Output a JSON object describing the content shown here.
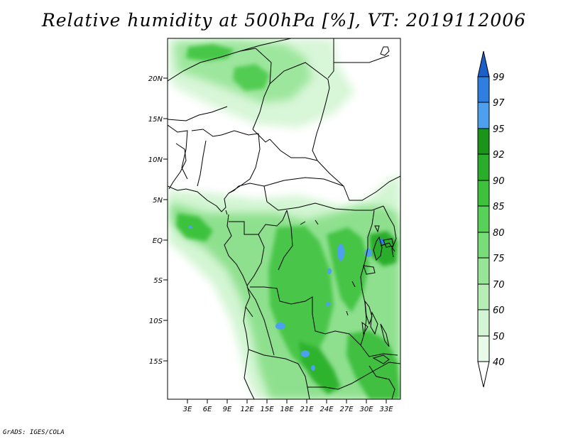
{
  "title": "Relative humidity at 500hPa [%], VT: 2019112006",
  "credit": "GrADS: IGES/COLA",
  "map": {
    "lat_ticks": [
      "20N",
      "15N",
      "10N",
      "5N",
      "EQ",
      "5S",
      "10S",
      "15S"
    ],
    "lon_ticks": [
      "3E",
      "6E",
      "9E",
      "12E",
      "15E",
      "18E",
      "21E",
      "24E",
      "27E",
      "30E",
      "33E"
    ]
  },
  "colorbar": {
    "levels": [
      "40",
      "50",
      "60",
      "70",
      "75",
      "80",
      "85",
      "90",
      "92",
      "95",
      "97",
      "99"
    ],
    "colors": {
      "below_40": "#ffffff",
      "40_50": "#e8fae8",
      "50_60": "#d3f5d3",
      "60_70": "#b6eeb6",
      "70_75": "#98e598",
      "75_80": "#78dc78",
      "80_85": "#58d158",
      "85_90": "#3ec23e",
      "90_92": "#2aad2a",
      "92_95": "#1a951a",
      "95_97": "#4da0ee",
      "97_99": "#2f7fe0",
      "above_99": "#1c5fc9"
    }
  }
}
